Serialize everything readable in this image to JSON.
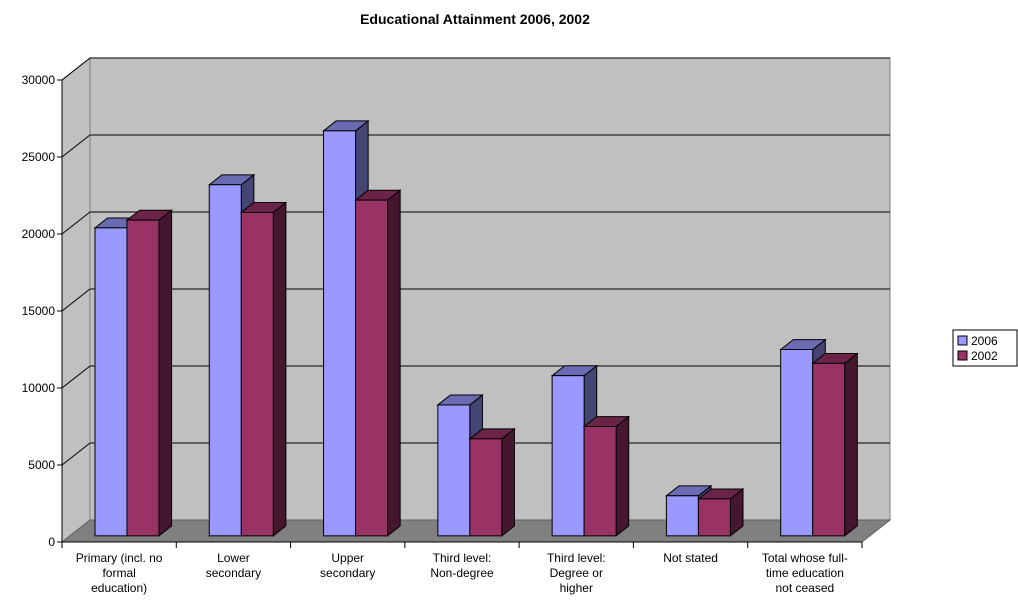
{
  "chart_data": {
    "type": "bar",
    "title": "Educational Attainment 2006, 2002",
    "categories": [
      [
        "Primary (incl. no",
        "formal",
        "education)"
      ],
      [
        "Lower",
        "secondary"
      ],
      [
        "Upper",
        "secondary"
      ],
      [
        "Third level:",
        "Non-degree"
      ],
      [
        "Third level:",
        "Degree or",
        "higher"
      ],
      [
        "Not stated"
      ],
      [
        "Total whose full-",
        "time education",
        "not ceased"
      ]
    ],
    "series": [
      {
        "name": "2006",
        "color": "#9999ff",
        "values": [
          20000,
          22800,
          26300,
          8500,
          10400,
          2600,
          12100
        ]
      },
      {
        "name": "2002",
        "color": "#993366",
        "values": [
          20500,
          21000,
          21800,
          6300,
          7100,
          2400,
          11200
        ]
      }
    ],
    "ylim": [
      0,
      30000
    ],
    "yticks": [
      "0",
      "5000",
      "10000",
      "15000",
      "20000",
      "25000",
      "30000"
    ],
    "grid": true,
    "legend_position": "right"
  }
}
